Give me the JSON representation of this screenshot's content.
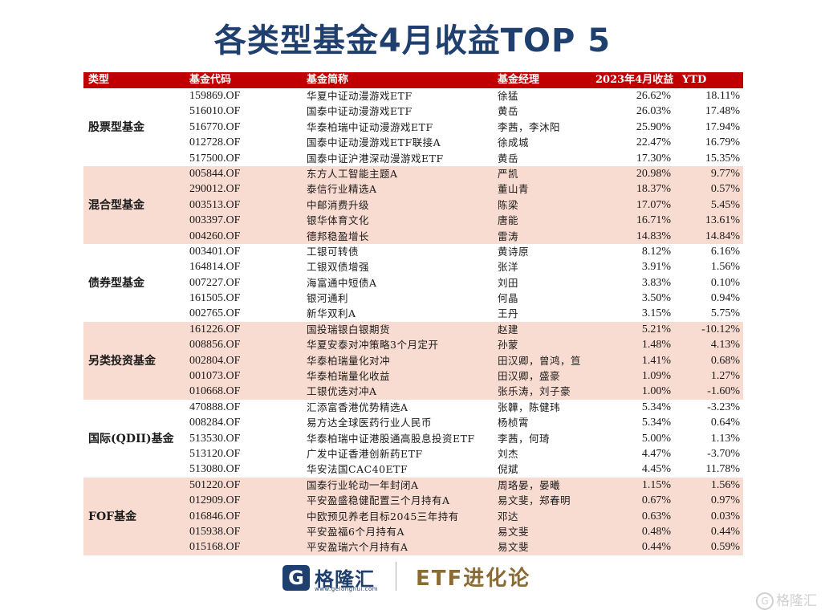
{
  "title": "各类型基金4月收益TOP 5",
  "header": {
    "type": "类型",
    "code": "基金代码",
    "name": "基金简称",
    "manager": "基金经理",
    "return": "2023年4月收益",
    "ytd": "YTD"
  },
  "groups": [
    {
      "type": "股票型基金",
      "rows": [
        {
          "code": "159869.OF",
          "name": "华夏中证动漫游戏ETF",
          "manager": "徐猛",
          "return": "26.62%",
          "ytd": "18.11%"
        },
        {
          "code": "516010.OF",
          "name": "国泰中证动漫游戏ETF",
          "manager": "黄岳",
          "return": "26.03%",
          "ytd": "17.48%"
        },
        {
          "code": "516770.OF",
          "name": "华泰柏瑞中证动漫游戏ETF",
          "manager": "李茜，李沐阳",
          "return": "25.90%",
          "ytd": "17.94%"
        },
        {
          "code": "012728.OF",
          "name": "国泰中证动漫游戏ETF联接A",
          "manager": "徐成城",
          "return": "22.47%",
          "ytd": "16.79%"
        },
        {
          "code": "517500.OF",
          "name": "国泰中证沪港深动漫游戏ETF",
          "manager": "黄岳",
          "return": "17.30%",
          "ytd": "15.35%"
        }
      ]
    },
    {
      "type": "混合型基金",
      "rows": [
        {
          "code": "005844.OF",
          "name": "东方人工智能主题A",
          "manager": "严凯",
          "return": "20.98%",
          "ytd": "9.77%"
        },
        {
          "code": "290012.OF",
          "name": "泰信行业精选A",
          "manager": "董山青",
          "return": "18.37%",
          "ytd": "0.57%"
        },
        {
          "code": "003513.OF",
          "name": "中邮消费升级",
          "manager": "陈梁",
          "return": "17.07%",
          "ytd": "5.45%"
        },
        {
          "code": "003397.OF",
          "name": "银华体育文化",
          "manager": "唐能",
          "return": "16.71%",
          "ytd": "13.61%"
        },
        {
          "code": "004260.OF",
          "name": "德邦稳盈增长",
          "manager": "雷涛",
          "return": "14.83%",
          "ytd": "14.84%"
        }
      ]
    },
    {
      "type": "债券型基金",
      "rows": [
        {
          "code": "003401.OF",
          "name": "工银可转债",
          "manager": "黄诗原",
          "return": "8.12%",
          "ytd": "6.16%"
        },
        {
          "code": "164814.OF",
          "name": "工银双债增强",
          "manager": "张洋",
          "return": "3.91%",
          "ytd": "1.56%"
        },
        {
          "code": "007227.OF",
          "name": "海富通中短债A",
          "manager": "刘田",
          "return": "3.83%",
          "ytd": "0.10%"
        },
        {
          "code": "161505.OF",
          "name": "银河通利",
          "manager": "何晶",
          "return": "3.50%",
          "ytd": "0.94%"
        },
        {
          "code": "002765.OF",
          "name": "新华双利A",
          "manager": "王丹",
          "return": "3.15%",
          "ytd": "5.75%"
        }
      ]
    },
    {
      "type": "另类投资基金",
      "rows": [
        {
          "code": "161226.OF",
          "name": "国投瑞银白银期货",
          "manager": "赵建",
          "return": "5.21%",
          "ytd": "-10.12%"
        },
        {
          "code": "008856.OF",
          "name": "华夏安泰对冲策略3个月定开",
          "manager": "孙蒙",
          "return": "1.48%",
          "ytd": "4.13%"
        },
        {
          "code": "002804.OF",
          "name": "华泰柏瑞量化对冲",
          "manager": "田汉卿，曾鸿，笪",
          "return": "1.41%",
          "ytd": "0.68%"
        },
        {
          "code": "001073.OF",
          "name": "华泰柏瑞量化收益",
          "manager": "田汉卿，盛豪",
          "return": "1.09%",
          "ytd": "1.27%"
        },
        {
          "code": "010668.OF",
          "name": "工银优选对冲A",
          "manager": "张乐涛，刘子豪",
          "return": "1.00%",
          "ytd": "-1.60%"
        }
      ]
    },
    {
      "type": "国际(QDII)基金",
      "rows": [
        {
          "code": "470888.OF",
          "name": "汇添富香港优势精选A",
          "manager": "张韡，陈健玮",
          "return": "5.34%",
          "ytd": "-3.23%"
        },
        {
          "code": "008284.OF",
          "name": "易方达全球医药行业人民币",
          "manager": "杨桢霄",
          "return": "5.34%",
          "ytd": "0.64%"
        },
        {
          "code": "513530.OF",
          "name": "华泰柏瑞中证港股通高股息投资ETF",
          "manager": "李茜，何琦",
          "return": "5.00%",
          "ytd": "1.13%"
        },
        {
          "code": "513120.OF",
          "name": "广发中证香港创新药ETF",
          "manager": "刘杰",
          "return": "4.47%",
          "ytd": "-3.70%"
        },
        {
          "code": "513080.OF",
          "name": "华安法国CAC40ETF",
          "manager": "倪斌",
          "return": "4.45%",
          "ytd": "11.78%"
        }
      ]
    },
    {
      "type": "FOF基金",
      "rows": [
        {
          "code": "501220.OF",
          "name": "国泰行业轮动一年封闭A",
          "manager": "周珞晏，晏曦",
          "return": "1.15%",
          "ytd": "1.56%"
        },
        {
          "code": "012909.OF",
          "name": "平安盈盛稳健配置三个月持有A",
          "manager": "易文斐，郑春明",
          "return": "0.67%",
          "ytd": "0.97%"
        },
        {
          "code": "016846.OF",
          "name": "中欧预见养老目标2045三年持有",
          "manager": "邓达",
          "return": "0.63%",
          "ytd": "0.03%"
        },
        {
          "code": "015938.OF",
          "name": "平安盈福6个月持有A",
          "manager": "易文斐",
          "return": "0.48%",
          "ytd": "0.44%"
        },
        {
          "code": "015168.OF",
          "name": "平安盈瑞六个月持有A",
          "manager": "易文斐",
          "return": "0.44%",
          "ytd": "0.59%"
        }
      ]
    }
  ],
  "footer": {
    "logo_mark": "G",
    "logo_name": "格隆汇",
    "logo_url": "www.gelonghui.com",
    "brand": "ETF进化论"
  },
  "watermark": {
    "mark": "G",
    "text": "格隆汇"
  },
  "colors": {
    "header_bg": "#c00000",
    "band_bg": "#f9dcd1",
    "title": "#1f3f6e"
  }
}
